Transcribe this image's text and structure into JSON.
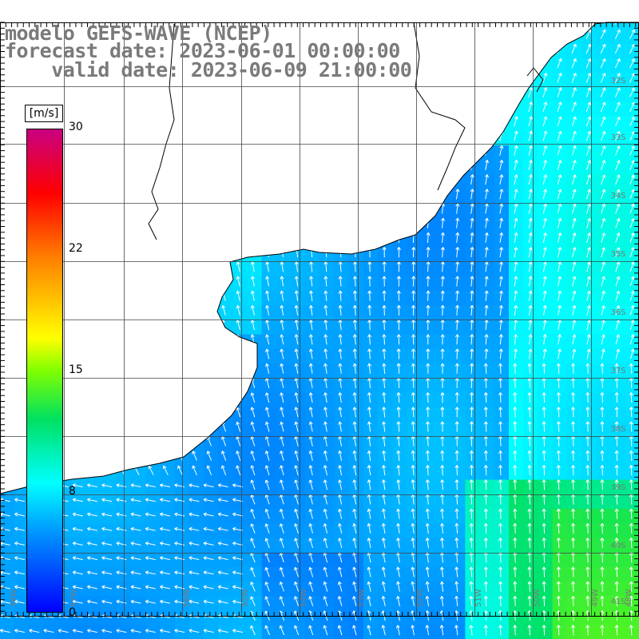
{
  "title": {
    "line1": "modelo GEFS-WAVE (NCEP)",
    "line2": "forecast date: 2023-06-01 00:00:00",
    "line3": "    valid date: 2023-06-09 21:00:00"
  },
  "colorbar": {
    "unit": "[m/s]",
    "ticks": [
      "30",
      "22",
      "15",
      "8",
      "0"
    ],
    "tick_values": [
      30,
      22,
      15,
      8,
      0
    ],
    "range": [
      0,
      30
    ],
    "stops": [
      {
        "v": 0,
        "c": "#0000ff"
      },
      {
        "v": 5,
        "c": "#0098ff"
      },
      {
        "v": 8,
        "c": "#00ffff"
      },
      {
        "v": 12,
        "c": "#00e060"
      },
      {
        "v": 15,
        "c": "#80ff00"
      },
      {
        "v": 17,
        "c": "#ffff00"
      },
      {
        "v": 22,
        "c": "#ff8000"
      },
      {
        "v": 26,
        "c": "#ff0000"
      },
      {
        "v": 30,
        "c": "#c80080"
      }
    ]
  },
  "lat_labels": [
    "32S",
    "33S",
    "34S",
    "35S",
    "36S",
    "37S",
    "38S",
    "39S",
    "40S",
    "41S"
  ],
  "lon_labels": [
    "58W",
    "57W",
    "56W",
    "55W",
    "54W",
    "53W",
    "52W",
    "51W",
    "50W",
    "49W",
    "48W"
  ],
  "colors": {
    "land": "#ffffff",
    "coast": "#000000",
    "grid": "#444444",
    "arrow": "#ffffff",
    "label": "#7a7a7a"
  }
}
